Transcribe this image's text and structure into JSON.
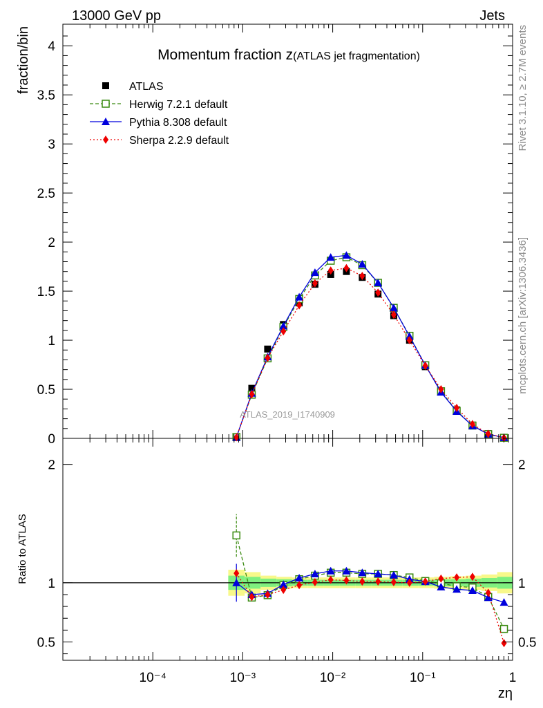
{
  "header": {
    "left": "13000 GeV pp",
    "right": "Jets"
  },
  "side": {
    "rivet": "Rivet 3.1.10, ≥ 2.7M events",
    "mcplots": "mcplots.cern.ch [arXiv:1306.3436]"
  },
  "colors": {
    "atlas": "#000000",
    "herwig": "#3a8a10",
    "pythia": "#0000dd",
    "sherpa": "#ee0000",
    "band_inner": "#7ff07f",
    "band_outer": "#f8f88a",
    "watermark": "#9a9a9a"
  },
  "chart_data": {
    "type": "line",
    "title_main": "Momentum fraction z",
    "title_sub": "(ATLAS jet fragmentation)",
    "watermark": "ATLAS_2019_I1740909",
    "xlabel": "zη",
    "ylabel": "fraction/bin",
    "ratio_ylabel": "Ratio to ATLAS",
    "x_scale": "log",
    "xlim": [
      1e-05,
      1
    ],
    "ylim": [
      0,
      4.22
    ],
    "ratio_ylim": [
      0.345,
      2.22
    ],
    "main_yticks": [
      {
        "v": 0,
        "label": "0"
      },
      {
        "v": 0.5,
        "label": "0.5"
      },
      {
        "v": 1,
        "label": "1"
      },
      {
        "v": 1.5,
        "label": "1.5"
      },
      {
        "v": 2,
        "label": "2"
      },
      {
        "v": 2.5,
        "label": "2.5"
      },
      {
        "v": 3,
        "label": "3"
      },
      {
        "v": 3.5,
        "label": "3.5"
      },
      {
        "v": 4,
        "label": "4"
      }
    ],
    "ratio_yticks": [
      {
        "v": 0.5,
        "label": "0.5"
      },
      {
        "v": 1,
        "label": "1"
      },
      {
        "v": 2,
        "label": "2"
      }
    ],
    "xticks": [
      {
        "v": 0.0001,
        "label": "10⁻⁴"
      },
      {
        "v": 0.001,
        "label": "10⁻³"
      },
      {
        "v": 0.01,
        "label": "10⁻²"
      },
      {
        "v": 0.1,
        "label": "10⁻¹"
      },
      {
        "v": 1,
        "label": "1"
      }
    ],
    "x": [
      0.00085,
      0.00126,
      0.00189,
      0.00283,
      0.00424,
      0.00635,
      0.0095,
      0.0142,
      0.0213,
      0.0319,
      0.0477,
      0.0714,
      0.107,
      0.16,
      0.239,
      0.358,
      0.536,
      0.802
    ],
    "band_x": [
      0.00069,
      0.00105,
      0.00158,
      0.00237,
      0.00354,
      0.0053,
      0.00794,
      0.0119,
      0.0178,
      0.0267,
      0.04,
      0.0599,
      0.0897,
      0.134,
      0.201,
      0.301,
      0.45,
      0.674,
      1.0
    ],
    "band_inner": [
      0.06,
      0.05,
      0.035,
      0.03,
      0.025,
      0.025,
      0.025,
      0.025,
      0.025,
      0.025,
      0.025,
      0.025,
      0.025,
      0.03,
      0.03,
      0.035,
      0.04,
      0.05
    ],
    "band_outer": [
      0.11,
      0.09,
      0.06,
      0.05,
      0.045,
      0.045,
      0.045,
      0.045,
      0.045,
      0.045,
      0.045,
      0.045,
      0.045,
      0.05,
      0.055,
      0.06,
      0.07,
      0.09
    ],
    "series": [
      {
        "key": "atlas",
        "name": "ATLAS",
        "style": "data",
        "marker": "square-filled",
        "values": [
          0.01,
          0.51,
          0.91,
          1.16,
          1.38,
          1.57,
          1.67,
          1.7,
          1.64,
          1.47,
          1.25,
          1.0,
          0.73,
          0.48,
          0.29,
          0.135,
          0.048,
          0.01
        ],
        "ratio": [
          1,
          1,
          1,
          1,
          1,
          1,
          1,
          1,
          1,
          1,
          1,
          1,
          1,
          1,
          1,
          1,
          1,
          1
        ]
      },
      {
        "key": "herwig",
        "name": "Herwig 7.2.1 default",
        "style": "dashed",
        "marker": "square-open",
        "values": [
          0.014,
          0.445,
          0.815,
          1.135,
          1.42,
          1.66,
          1.81,
          1.845,
          1.765,
          1.585,
          1.33,
          1.045,
          0.745,
          0.48,
          0.28,
          0.13,
          0.042,
          0.006
        ],
        "ratio": [
          1.4,
          0.875,
          0.895,
          0.98,
          1.03,
          1.06,
          1.085,
          1.085,
          1.075,
          1.075,
          1.065,
          1.045,
          1.015,
          0.995,
          0.97,
          0.96,
          0.88,
          0.61
        ]
      },
      {
        "key": "pythia",
        "name": "Pythia 8.308 default",
        "style": "solid",
        "marker": "triangle",
        "values": [
          0.01,
          0.46,
          0.83,
          1.145,
          1.44,
          1.69,
          1.845,
          1.865,
          1.775,
          1.585,
          1.33,
          1.04,
          0.745,
          0.47,
          0.275,
          0.128,
          0.043,
          0.008
        ],
        "ratio": [
          1.0,
          0.9,
          0.91,
          0.985,
          1.04,
          1.075,
          1.1,
          1.1,
          1.085,
          1.075,
          1.065,
          1.03,
          1.01,
          0.965,
          0.945,
          0.935,
          0.875,
          0.835
        ]
      },
      {
        "key": "sherpa",
        "name": "Sherpa 2.2.9 default",
        "style": "dotted",
        "marker": "diamond",
        "values": [
          0.011,
          0.45,
          0.82,
          1.09,
          1.355,
          1.58,
          1.71,
          1.735,
          1.655,
          1.485,
          1.26,
          1.0,
          0.74,
          0.5,
          0.31,
          0.145,
          0.046,
          0.005
        ],
        "ratio": [
          1.08,
          0.88,
          0.9,
          0.94,
          0.98,
          1.005,
          1.025,
          1.02,
          1.01,
          1.01,
          1.005,
          1.0,
          1.01,
          1.035,
          1.045,
          1.05,
          0.915,
          0.49
        ]
      }
    ],
    "first_point_ratio_err": {
      "atlas": [
        0.84,
        1.16
      ],
      "herwig": [
        1.22,
        1.58
      ]
    }
  }
}
